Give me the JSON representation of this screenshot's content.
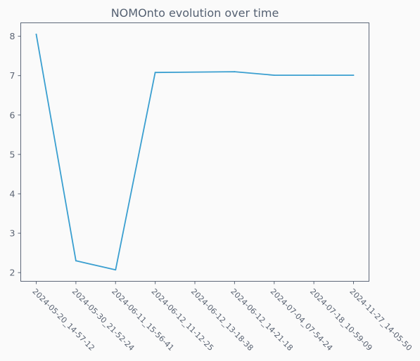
{
  "chart_data": {
    "type": "line",
    "title": "NOMOnto evolution over time",
    "xlabel": "",
    "ylabel": "",
    "categories": [
      "2024-05-20_14-57-12",
      "2024-05-30_21-52-24",
      "2024-06-11_15-56-41",
      "2024-06-12_11-12-25",
      "2024-06-12_13-18-38",
      "2024-06-12_14-21-18",
      "2024-07-04_07-54-24",
      "2024-07-18_10-59-09",
      "2024-11-27_14-05-50"
    ],
    "series": [
      {
        "values": [
          8.05,
          2.3,
          2.07,
          7.08,
          null,
          7.1,
          7.01,
          7.01,
          7.01
        ],
        "color": "#3a9fd0"
      }
    ],
    "ylim": [
      1.78,
      8.34
    ],
    "yticks": [
      2,
      3,
      4,
      5,
      6,
      7,
      8
    ],
    "grid": false,
    "x_tick_rotation": 45
  }
}
